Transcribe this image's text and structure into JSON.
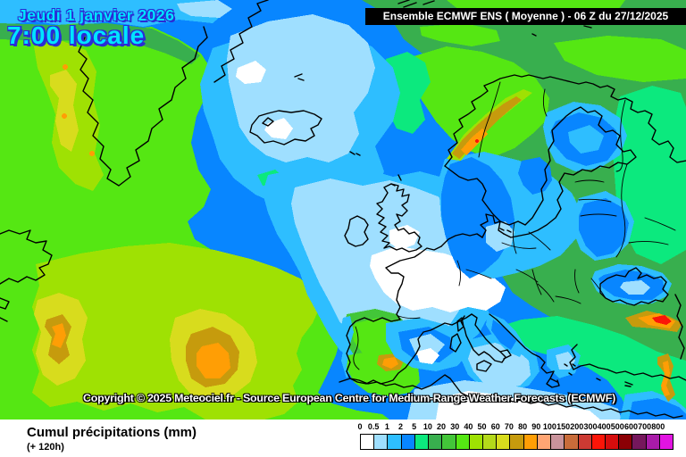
{
  "header": {
    "date_line": "Jeudi 1 janvier 2026",
    "time_line": "7:00 locale",
    "model_bar": "Ensemble ECMWF ENS  ( Moyenne )  -  06 Z du 27/12/2025"
  },
  "map": {
    "copyright": "Copyright © 2025 Meteociel.fr - Source European Centre for Medium-Range Weather Forecasts (ECMWF)",
    "region": "Europe / North Atlantic"
  },
  "legend": {
    "title": "Cumul précipitations (mm)",
    "subtitle": "(+ 120h)",
    "unit": "mm",
    "stops": [
      {
        "value": "0",
        "color": "#FFFFFF"
      },
      {
        "value": "0.5",
        "color": "#9FDFFF"
      },
      {
        "value": "1",
        "color": "#2EBEFF"
      },
      {
        "value": "2",
        "color": "#0886FF"
      },
      {
        "value": "5",
        "color": "#0CE97E"
      },
      {
        "value": "10",
        "color": "#38AF4E"
      },
      {
        "value": "20",
        "color": "#43C639"
      },
      {
        "value": "30",
        "color": "#55E713"
      },
      {
        "value": "40",
        "color": "#9FE103"
      },
      {
        "value": "50",
        "color": "#B4D91A"
      },
      {
        "value": "60",
        "color": "#D8DC1D"
      },
      {
        "value": "70",
        "color": "#C69B0D"
      },
      {
        "value": "80",
        "color": "#FF9E05"
      },
      {
        "value": "90",
        "color": "#FFA573"
      },
      {
        "value": "100",
        "color": "#C9939B"
      },
      {
        "value": "150",
        "color": "#C96C3A"
      },
      {
        "value": "200",
        "color": "#CC3A33"
      },
      {
        "value": "300",
        "color": "#FB1508"
      },
      {
        "value": "400",
        "color": "#D60D0D"
      },
      {
        "value": "500",
        "color": "#8B0005"
      },
      {
        "value": "600",
        "color": "#75175C"
      },
      {
        "value": "700",
        "color": "#A81BA8"
      },
      {
        "value": "800",
        "color": "#E214E2"
      }
    ]
  },
  "colors": {
    "datetime_text": "#00E4FF",
    "datetime_outline": "#2B2BD5",
    "model_bar_bg": "#000000",
    "model_bar_text": "#FFFFFF",
    "copyright_text": "#FFFFFF",
    "legend_bg": "#FFFFFF"
  }
}
